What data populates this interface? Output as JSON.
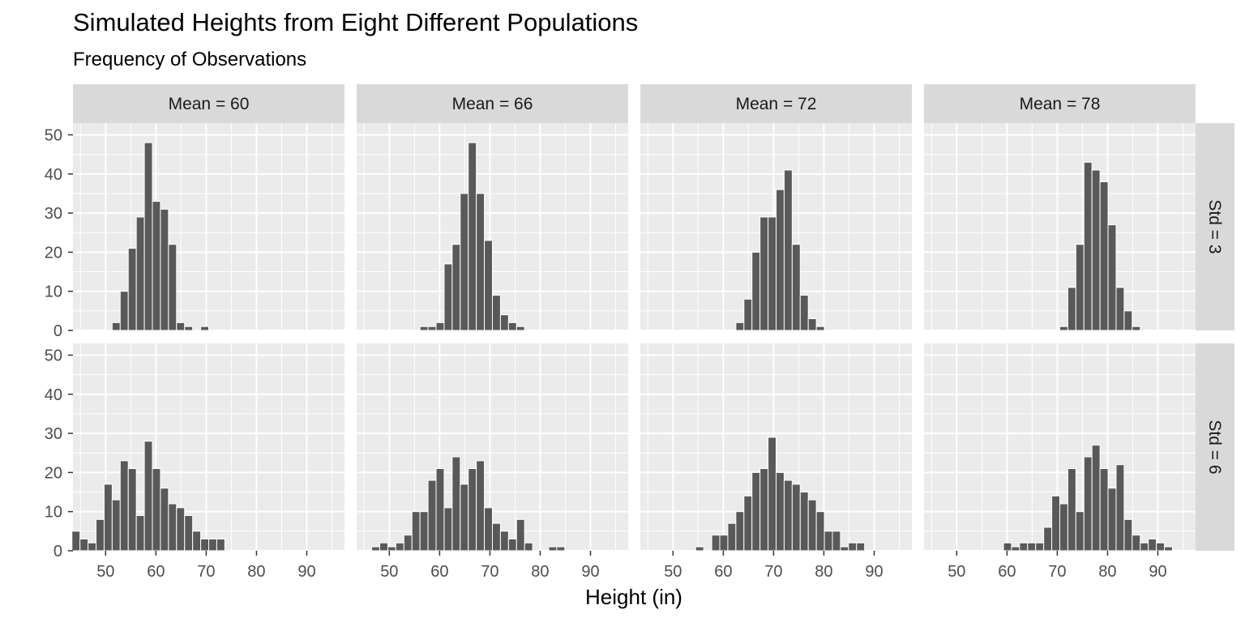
{
  "title": "Simulated Heights from Eight Different Populations",
  "subtitle": "Frequency of Observations",
  "chart_data": {
    "type": "bar",
    "subtype": "faceted-histogram",
    "title": "Simulated Heights from Eight Different Populations",
    "subtitle": "Frequency of Observations",
    "xlabel": "Height (in)",
    "ylabel": "",
    "xlim": [
      43.5,
      97.5
    ],
    "ylim": [
      0,
      53
    ],
    "bin_width": 1.6,
    "x_ticks": [
      50,
      60,
      70,
      80,
      90
    ],
    "y_ticks": [
      0,
      10,
      20,
      30,
      40,
      50
    ],
    "column_labels": [
      "Mean = 60",
      "Mean = 66",
      "Mean = 72",
      "Mean = 78"
    ],
    "row_labels": [
      "Std = 3",
      "Std = 6"
    ],
    "grid": true,
    "colors": {
      "bar": "#595959",
      "panel": "#ebebeb",
      "strip": "#d9d9d9",
      "grid": "#ffffff"
    },
    "panels": [
      {
        "row": 0,
        "col": 0,
        "mean": 60,
        "std": 3,
        "bins": [
          {
            "x": 52.1,
            "y": 2
          },
          {
            "x": 53.7,
            "y": 10
          },
          {
            "x": 55.3,
            "y": 21
          },
          {
            "x": 56.9,
            "y": 29
          },
          {
            "x": 58.5,
            "y": 48
          },
          {
            "x": 60.1,
            "y": 33
          },
          {
            "x": 61.7,
            "y": 31
          },
          {
            "x": 63.3,
            "y": 22
          },
          {
            "x": 64.9,
            "y": 2
          },
          {
            "x": 66.5,
            "y": 1
          },
          {
            "x": 69.7,
            "y": 1
          }
        ]
      },
      {
        "row": 0,
        "col": 1,
        "mean": 66,
        "std": 3,
        "bins": [
          {
            "x": 56.9,
            "y": 1
          },
          {
            "x": 58.5,
            "y": 1
          },
          {
            "x": 60.1,
            "y": 2
          },
          {
            "x": 61.7,
            "y": 17
          },
          {
            "x": 63.3,
            "y": 22
          },
          {
            "x": 64.9,
            "y": 35
          },
          {
            "x": 66.5,
            "y": 48
          },
          {
            "x": 68.1,
            "y": 35
          },
          {
            "x": 69.7,
            "y": 23
          },
          {
            "x": 71.3,
            "y": 9
          },
          {
            "x": 72.9,
            "y": 4
          },
          {
            "x": 74.5,
            "y": 2
          },
          {
            "x": 76.1,
            "y": 1
          }
        ]
      },
      {
        "row": 0,
        "col": 2,
        "mean": 72,
        "std": 3,
        "bins": [
          {
            "x": 63.3,
            "y": 2
          },
          {
            "x": 64.9,
            "y": 8
          },
          {
            "x": 66.5,
            "y": 20
          },
          {
            "x": 68.1,
            "y": 29
          },
          {
            "x": 69.7,
            "y": 29
          },
          {
            "x": 71.3,
            "y": 36
          },
          {
            "x": 72.9,
            "y": 41
          },
          {
            "x": 74.5,
            "y": 22
          },
          {
            "x": 76.1,
            "y": 9
          },
          {
            "x": 77.7,
            "y": 3
          },
          {
            "x": 79.3,
            "y": 1
          }
        ]
      },
      {
        "row": 0,
        "col": 3,
        "mean": 78,
        "std": 3,
        "bins": [
          {
            "x": 71.3,
            "y": 1
          },
          {
            "x": 72.9,
            "y": 11
          },
          {
            "x": 74.5,
            "y": 22
          },
          {
            "x": 76.1,
            "y": 43
          },
          {
            "x": 77.7,
            "y": 41
          },
          {
            "x": 79.3,
            "y": 38
          },
          {
            "x": 80.9,
            "y": 27
          },
          {
            "x": 82.5,
            "y": 11
          },
          {
            "x": 84.1,
            "y": 5
          },
          {
            "x": 85.7,
            "y": 1
          }
        ]
      },
      {
        "row": 1,
        "col": 0,
        "mean": 60,
        "std": 6,
        "bins": [
          {
            "x": 44.1,
            "y": 5
          },
          {
            "x": 45.7,
            "y": 3
          },
          {
            "x": 47.3,
            "y": 2
          },
          {
            "x": 48.9,
            "y": 8
          },
          {
            "x": 50.5,
            "y": 17
          },
          {
            "x": 52.1,
            "y": 13
          },
          {
            "x": 53.7,
            "y": 23
          },
          {
            "x": 55.3,
            "y": 21
          },
          {
            "x": 56.9,
            "y": 9
          },
          {
            "x": 58.5,
            "y": 28
          },
          {
            "x": 60.1,
            "y": 21
          },
          {
            "x": 61.7,
            "y": 16
          },
          {
            "x": 63.3,
            "y": 12
          },
          {
            "x": 64.9,
            "y": 11
          },
          {
            "x": 66.5,
            "y": 9
          },
          {
            "x": 68.1,
            "y": 5
          },
          {
            "x": 69.7,
            "y": 3
          },
          {
            "x": 71.3,
            "y": 3
          },
          {
            "x": 72.9,
            "y": 3
          }
        ]
      },
      {
        "row": 1,
        "col": 1,
        "mean": 66,
        "std": 6,
        "bins": [
          {
            "x": 47.3,
            "y": 1
          },
          {
            "x": 48.9,
            "y": 2
          },
          {
            "x": 50.5,
            "y": 1
          },
          {
            "x": 52.1,
            "y": 2
          },
          {
            "x": 53.7,
            "y": 4
          },
          {
            "x": 55.3,
            "y": 10
          },
          {
            "x": 56.9,
            "y": 10
          },
          {
            "x": 58.5,
            "y": 18
          },
          {
            "x": 60.1,
            "y": 21
          },
          {
            "x": 61.7,
            "y": 11
          },
          {
            "x": 63.3,
            "y": 24
          },
          {
            "x": 64.9,
            "y": 17
          },
          {
            "x": 66.5,
            "y": 21
          },
          {
            "x": 68.1,
            "y": 23
          },
          {
            "x": 69.7,
            "y": 11
          },
          {
            "x": 71.3,
            "y": 7
          },
          {
            "x": 72.9,
            "y": 5
          },
          {
            "x": 74.5,
            "y": 3
          },
          {
            "x": 76.1,
            "y": 8
          },
          {
            "x": 77.7,
            "y": 2
          },
          {
            "x": 82.5,
            "y": 1
          },
          {
            "x": 84.1,
            "y": 1
          }
        ]
      },
      {
        "row": 1,
        "col": 2,
        "mean": 72,
        "std": 6,
        "bins": [
          {
            "x": 55.3,
            "y": 1
          },
          {
            "x": 58.5,
            "y": 4
          },
          {
            "x": 60.1,
            "y": 4
          },
          {
            "x": 61.7,
            "y": 7
          },
          {
            "x": 63.3,
            "y": 10
          },
          {
            "x": 64.9,
            "y": 14
          },
          {
            "x": 66.5,
            "y": 20
          },
          {
            "x": 68.1,
            "y": 21
          },
          {
            "x": 69.7,
            "y": 29
          },
          {
            "x": 71.3,
            "y": 20
          },
          {
            "x": 72.9,
            "y": 18
          },
          {
            "x": 74.5,
            "y": 17
          },
          {
            "x": 76.1,
            "y": 15
          },
          {
            "x": 77.7,
            "y": 13
          },
          {
            "x": 79.3,
            "y": 10
          },
          {
            "x": 80.9,
            "y": 5
          },
          {
            "x": 82.5,
            "y": 5
          },
          {
            "x": 84.1,
            "y": 1
          },
          {
            "x": 85.7,
            "y": 2
          },
          {
            "x": 87.3,
            "y": 2
          }
        ]
      },
      {
        "row": 1,
        "col": 3,
        "mean": 78,
        "std": 6,
        "bins": [
          {
            "x": 60.1,
            "y": 2
          },
          {
            "x": 61.7,
            "y": 1
          },
          {
            "x": 63.3,
            "y": 2
          },
          {
            "x": 64.9,
            "y": 2
          },
          {
            "x": 66.5,
            "y": 2
          },
          {
            "x": 68.1,
            "y": 6
          },
          {
            "x": 69.7,
            "y": 14
          },
          {
            "x": 71.3,
            "y": 12
          },
          {
            "x": 72.9,
            "y": 21
          },
          {
            "x": 74.5,
            "y": 10
          },
          {
            "x": 76.1,
            "y": 24
          },
          {
            "x": 77.7,
            "y": 27
          },
          {
            "x": 79.3,
            "y": 21
          },
          {
            "x": 80.9,
            "y": 16
          },
          {
            "x": 82.5,
            "y": 22
          },
          {
            "x": 84.1,
            "y": 8
          },
          {
            "x": 85.7,
            "y": 4
          },
          {
            "x": 87.3,
            "y": 2
          },
          {
            "x": 88.9,
            "y": 3
          },
          {
            "x": 90.5,
            "y": 2
          },
          {
            "x": 92.1,
            "y": 1
          }
        ]
      }
    ]
  }
}
